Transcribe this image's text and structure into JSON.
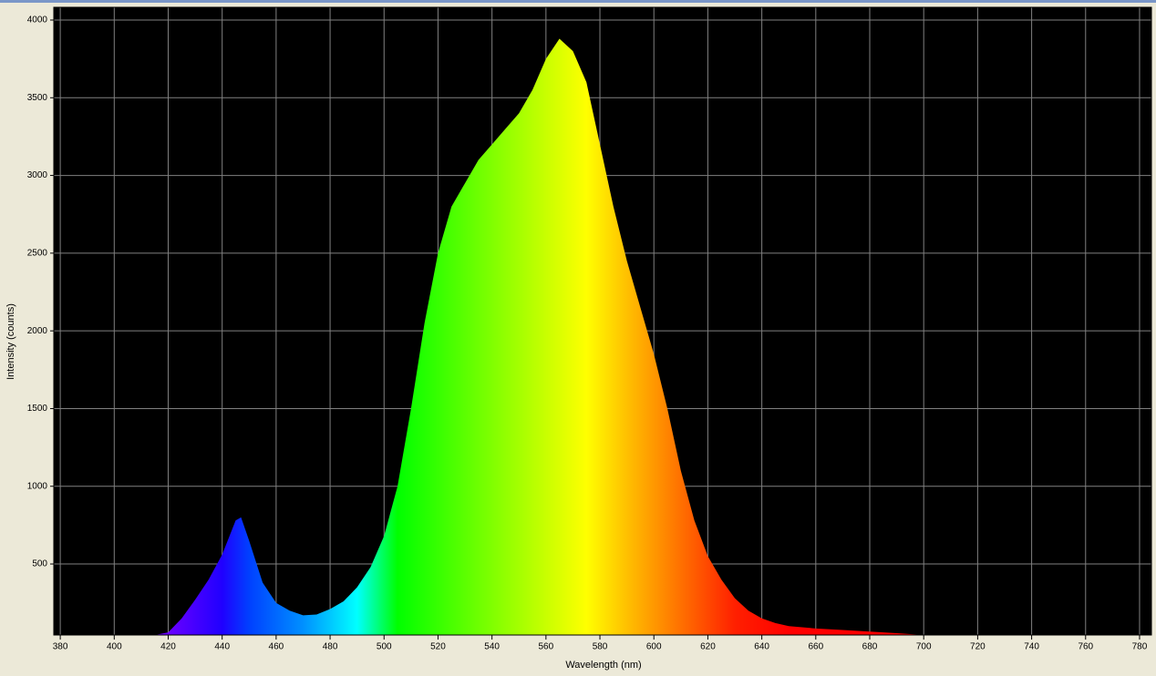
{
  "chart_data": {
    "type": "area",
    "x_label": "Wavelength (nm)",
    "y_label": "Intensity (counts)",
    "x": [
      415,
      420,
      425,
      430,
      435,
      440,
      445,
      447,
      450,
      455,
      460,
      465,
      470,
      475,
      480,
      485,
      490,
      495,
      500,
      505,
      510,
      515,
      520,
      525,
      530,
      535,
      540,
      545,
      550,
      555,
      560,
      565,
      570,
      575,
      580,
      585,
      590,
      595,
      600,
      605,
      610,
      615,
      620,
      625,
      630,
      635,
      640,
      645,
      650,
      660,
      670,
      680,
      690,
      700
    ],
    "values": [
      43,
      60,
      150,
      270,
      400,
      560,
      780,
      800,
      650,
      380,
      250,
      200,
      170,
      175,
      210,
      260,
      350,
      480,
      680,
      1000,
      1500,
      2050,
      2500,
      2800,
      2950,
      3100,
      3200,
      3300,
      3400,
      3550,
      3750,
      3880,
      3800,
      3600,
      3200,
      2800,
      2450,
      2150,
      1850,
      1500,
      1100,
      780,
      550,
      400,
      280,
      200,
      150,
      120,
      100,
      85,
      75,
      65,
      55,
      43
    ],
    "color_stops": [
      {
        "x": 420,
        "color": "#6a00ff"
      },
      {
        "x": 440,
        "color": "#2000ff"
      },
      {
        "x": 450,
        "color": "#0040ff"
      },
      {
        "x": 470,
        "color": "#0090ff"
      },
      {
        "x": 490,
        "color": "#00ffff"
      },
      {
        "x": 505,
        "color": "#00ff00"
      },
      {
        "x": 540,
        "color": "#80ff00"
      },
      {
        "x": 575,
        "color": "#ffff00"
      },
      {
        "x": 590,
        "color": "#ffc000"
      },
      {
        "x": 610,
        "color": "#ff7000"
      },
      {
        "x": 630,
        "color": "#ff2000"
      },
      {
        "x": 650,
        "color": "#ff0000"
      },
      {
        "x": 700,
        "color": "#ff0000"
      }
    ],
    "xlim": [
      377.6,
      784.4
    ],
    "ylim": [
      43,
      4082
    ],
    "xticks": [
      380,
      400,
      420,
      440,
      460,
      480,
      500,
      520,
      540,
      560,
      580,
      600,
      620,
      640,
      660,
      680,
      700,
      720,
      740,
      760,
      780
    ],
    "yticks": [
      500,
      1000,
      1500,
      2000,
      2500,
      3000,
      3500,
      4000
    ],
    "grid": true,
    "background": "#000000",
    "grid_color": "#808080"
  }
}
